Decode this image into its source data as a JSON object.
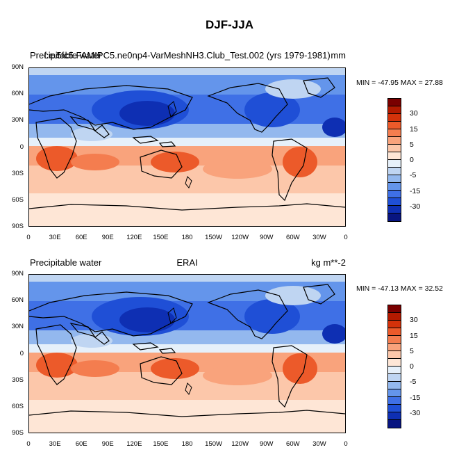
{
  "title": "DJF-JJA",
  "panels": [
    {
      "left_label": "Precipitable water",
      "center_label": "f.e.5fc5.FAMIPC5.ne0np4-VarMeshNH3.Club_Test.002 (yrs 1979-1981)",
      "right_label": "mm",
      "min_max": "MIN = -47.95 MAX =  27.88"
    },
    {
      "left_label": "Precipitable water",
      "center_label": "ERAI",
      "right_label": "kg m**-2",
      "min_max": "MIN = -47.13 MAX =  32.52"
    }
  ],
  "lat_ticks": [
    "90N",
    "60N",
    "30N",
    "0",
    "30S",
    "60S",
    "90S"
  ],
  "lon_ticks": [
    "0",
    "30E",
    "60E",
    "90E",
    "120E",
    "150E",
    "180",
    "150W",
    "120W",
    "90W",
    "60W",
    "30W",
    "0"
  ],
  "colorbar": {
    "labels": [
      "30",
      "15",
      "5",
      "0",
      "-5",
      "-15",
      "-30"
    ],
    "colors": [
      "#7a0000",
      "#b31a00",
      "#d4320a",
      "#ec5a2a",
      "#f47d4f",
      "#f9a37c",
      "#fcc7aa",
      "#fee6d6",
      "#e6f0fa",
      "#bfd5f2",
      "#93b8ee",
      "#6495eb",
      "#3f70e6",
      "#1f4fd6",
      "#0e2fb3",
      "#081580"
    ]
  }
}
